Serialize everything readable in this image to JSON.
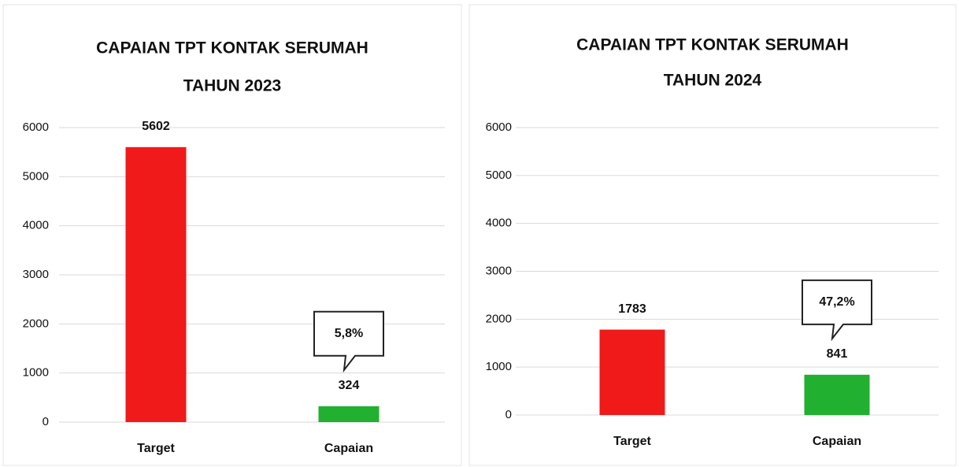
{
  "chart_data": [
    {
      "type": "bar",
      "title": "CAPAIAN TPT KONTAK SERUMAH",
      "subtitle": "TAHUN 2023",
      "categories": [
        "Target",
        "Capaian"
      ],
      "values": [
        5602,
        324
      ],
      "colors": [
        "#f01a1a",
        "#22b030"
      ],
      "ylim": [
        0,
        6000
      ],
      "yticks": [
        0,
        1000,
        2000,
        3000,
        4000,
        5000,
        6000
      ],
      "grid": true,
      "annotation": "5,8%"
    },
    {
      "type": "bar",
      "title": "CAPAIAN TPT KONTAK SERUMAH",
      "subtitle": "TAHUN 2024",
      "categories": [
        "Target",
        "Capaian"
      ],
      "values": [
        1783,
        841
      ],
      "colors": [
        "#f01a1a",
        "#22b030"
      ],
      "ylim": [
        0,
        6000
      ],
      "yticks": [
        0,
        1000,
        2000,
        3000,
        4000,
        5000,
        6000
      ],
      "grid": true,
      "annotation": "47,2%"
    }
  ]
}
